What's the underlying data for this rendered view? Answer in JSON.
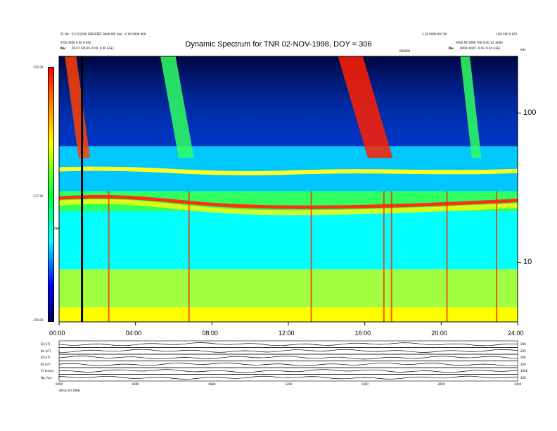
{
  "header": {
    "left_line1": "51:09 - 51:10 [200 SPACEBEF 0000:00] (Hz) - 0 00 0000 000",
    "left_line2": "A:00 0000 0 00 0:000",
    "left_line3_label": "Ra:",
    "left_line3_value": "00.07 (00.00, 4.00, 0.40 GSE)",
    "right_line1": "1.10 V000 00 F00",
    "right_line2": "0000 PICTURE T00 0:00 10, 0000",
    "right_line3_label": "Ra:",
    "right_line3_value": "0000 (0407, 0.00, 0.04 GSE)",
    "right_tag": "LO0 000 0.001",
    "top_right_tag": "kHz",
    "mid_tag": "000000"
  },
  "chart_data": [
    {
      "type": "heatmap",
      "title": "Dynamic Spectrum for TNR 02-NOV-1998, DOY = 306",
      "x_ticks": [
        "00:00",
        "04:00",
        "08:00",
        "12:00",
        "16:00",
        "20:00",
        "24:00"
      ],
      "xlim": [
        0,
        24
      ],
      "y_scale": "log",
      "ylim": [
        4,
        240
      ],
      "y_ticks_right": [
        "100",
        "10"
      ],
      "y_tick_values": [
        100,
        10
      ],
      "colorbar": {
        "ticks": [
          "-125.00",
          "-137.50",
          "-150.00"
        ],
        "label": "TNR",
        "range": [
          -150,
          -125
        ],
        "colors": [
          "#000060",
          "#0000ff",
          "#00ffff",
          "#00ff40",
          "#ffff00",
          "#ff8000",
          "#ff0000"
        ]
      },
      "bands": [
        {
          "name": "background",
          "ymax": 5,
          "color": "#ffff00"
        },
        {
          "name": "low",
          "ymax": 9,
          "color": "#a0ff40"
        },
        {
          "name": "mid",
          "ymax": 22,
          "color": "#00ffff"
        },
        {
          "name": "plasma",
          "ymax": 30,
          "color": "#30ff60"
        },
        {
          "name": "upper",
          "ymax": 60,
          "color": "#00c8ff"
        },
        {
          "name": "high",
          "ymax": 240,
          "color": "#0030c0"
        }
      ],
      "bursts": [
        {
          "t": 0.3,
          "width": 0.6,
          "color": "#ff4000"
        },
        {
          "t": 5.3,
          "width": 0.8,
          "color": "#30ff60"
        },
        {
          "t": 14.6,
          "width": 1.3,
          "color": "#ff2000"
        },
        {
          "t": 21.0,
          "width": 0.5,
          "color": "#30ff60"
        }
      ],
      "spikes": [
        2.6,
        6.8,
        13.2,
        17.0,
        17.4,
        20.3,
        22.9
      ],
      "marker_time": 1.2
    },
    {
      "type": "line",
      "panels": [
        {
          "label": "Bj (nT)",
          "right": "200"
        },
        {
          "label": "Bk (nT)",
          "right": "200"
        },
        {
          "label": "Bl (nT)",
          "right": "200"
        },
        {
          "label": "Bt (nT)",
          "right": "200"
        },
        {
          "label": "Vt (km/s)",
          "right": "1000"
        },
        {
          "label": "Np (/cc)",
          "right": "100"
        }
      ],
      "x_ticks": [
        "0000",
        "0400",
        "0800",
        "1200",
        "1600",
        "2000",
        "2400"
      ],
      "footer": "Wind.mfi 1998"
    }
  ]
}
